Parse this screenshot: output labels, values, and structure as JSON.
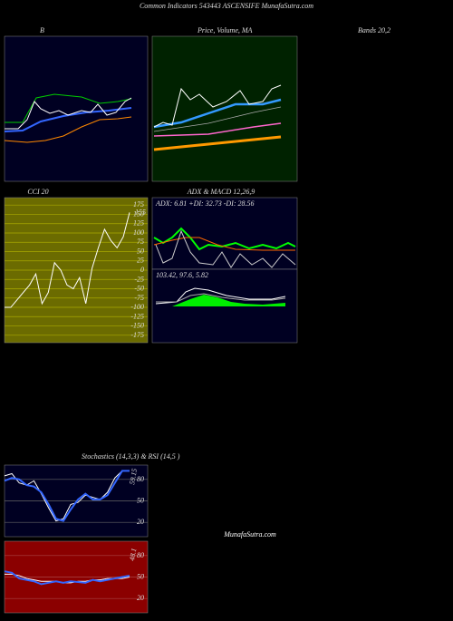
{
  "header": {
    "title": "Common Indicators 543443 ASCENSIFE MunafaSutra.com"
  },
  "labels": {
    "bands_b": "B",
    "price_ma": "Price, Volume, MA",
    "bands": "Bands 20,2",
    "adx_macd": "ADX  & MACD 12,26,9",
    "adx_values": "ADX: 6.81 +DI: 32.73 -DI: 28.56",
    "macd_values": "103.42,  97.6,  5.82",
    "stoch_rsi": "Stochastics (14,3,3) & RSI (14,5 )",
    "watermark": "MunafaSutra.com"
  },
  "chart_data": [
    {
      "type": "line",
      "title": "CCI 20",
      "ylim": [
        -195,
        195
      ],
      "yticks": [
        175,
        150,
        125,
        100,
        75,
        50,
        25,
        0,
        -25,
        -50,
        -75,
        -100,
        -125,
        -150,
        -175
      ],
      "grid": true,
      "series": [
        {
          "color": "#ffffff",
          "values": [
            -100,
            -100,
            -80,
            -60,
            -40,
            -10,
            -90,
            -60,
            20,
            0,
            -40,
            -50,
            -20,
            -90,
            5,
            60,
            110,
            80,
            60,
            90,
            155
          ],
          "last_label": "155"
        }
      ]
    },
    {
      "type": "line",
      "ylim": [
        0,
        100
      ],
      "yticks": [
        80,
        50,
        20
      ],
      "background": "#000022",
      "annotation": "59.15",
      "series": [
        {
          "color": "#ffffff",
          "values": [
            85,
            88,
            75,
            72,
            78,
            60,
            40,
            22,
            25,
            45,
            48,
            58,
            55,
            52,
            62,
            82,
            92,
            92
          ]
        },
        {
          "color": "#3366ff",
          "values": [
            78,
            82,
            80,
            72,
            70,
            62,
            45,
            25,
            22,
            38,
            52,
            60,
            52,
            52,
            58,
            75,
            92,
            92
          ]
        }
      ]
    },
    {
      "type": "line",
      "ylim": [
        0,
        100
      ],
      "yticks": [
        80,
        50,
        20
      ],
      "background": "#8b0000",
      "annotation": "48.1",
      "series": [
        {
          "color": "#ffffff",
          "values": [
            54,
            54,
            52,
            48,
            46,
            44,
            44,
            44,
            42,
            42,
            44,
            44,
            46,
            46,
            48,
            48,
            48,
            50
          ]
        },
        {
          "color": "#3366ff",
          "values": [
            58,
            56,
            48,
            46,
            44,
            40,
            42,
            44,
            42,
            44,
            43,
            42,
            46,
            44,
            46,
            48,
            50,
            52
          ]
        }
      ]
    }
  ]
}
